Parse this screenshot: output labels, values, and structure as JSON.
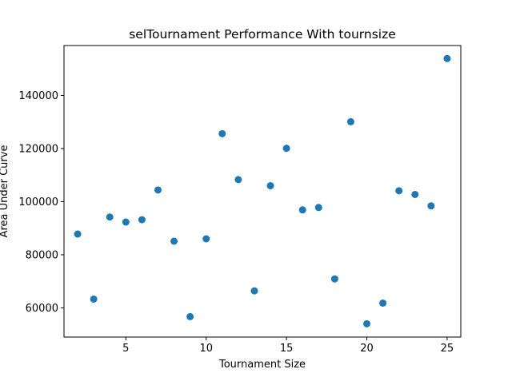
{
  "chart_data": {
    "type": "scatter",
    "title": "selTournament Performance With tournsize",
    "xlabel": "Tournament Size",
    "ylabel": "Area Under Curve",
    "xlim": [
      1.15,
      25.85
    ],
    "ylim": [
      49000,
      158800
    ],
    "xticks": [
      5,
      10,
      15,
      20,
      25
    ],
    "yticks": [
      60000,
      80000,
      100000,
      120000,
      140000
    ],
    "xtick_labels": [
      "5",
      "10",
      "15",
      "20",
      "25"
    ],
    "ytick_labels": [
      "60000",
      "80000",
      "100000",
      "120000",
      "140000"
    ],
    "grid": false,
    "marker_color": "#1f77b4",
    "series": [
      {
        "x": [
          2,
          3,
          4,
          5,
          6,
          7,
          8,
          9,
          10,
          11,
          12,
          13,
          14,
          15,
          16,
          17,
          18,
          19,
          20,
          21,
          22,
          23,
          24,
          25
        ],
        "y": [
          87800,
          63300,
          94200,
          92300,
          93200,
          104400,
          85100,
          56700,
          86000,
          125600,
          108300,
          66400,
          106000,
          120100,
          96900,
          97800,
          70900,
          130100,
          54000,
          61800,
          104100,
          102700,
          98400,
          153900
        ]
      }
    ]
  }
}
